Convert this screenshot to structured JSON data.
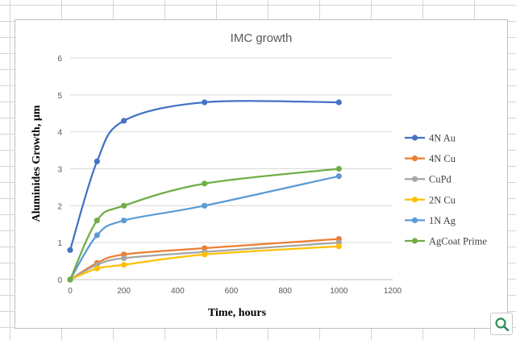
{
  "chart_data": {
    "type": "line",
    "title": "IMC growth",
    "xlabel": "Time, hours",
    "ylabel": "Aluminides Growth, µm",
    "xlim": [
      0,
      1200
    ],
    "ylim": [
      0,
      6
    ],
    "xticks": [
      0,
      200,
      400,
      600,
      800,
      1000,
      1200
    ],
    "yticks": [
      0,
      1,
      2,
      3,
      4,
      5,
      6
    ],
    "grid": "horizontal",
    "legend": "right",
    "series": [
      {
        "name": "4N Au",
        "color": "#4472c4",
        "x": [
          0,
          100,
          200,
          500,
          1000
        ],
        "y": [
          0.8,
          3.2,
          4.3,
          4.8,
          4.8
        ]
      },
      {
        "name": "4N Cu",
        "color": "#ed7d31",
        "x": [
          0,
          100,
          200,
          500,
          1000
        ],
        "y": [
          0,
          0.45,
          0.68,
          0.85,
          1.1
        ]
      },
      {
        "name": "CuPd",
        "color": "#a5a5a5",
        "x": [
          0,
          100,
          200,
          500,
          1000
        ],
        "y": [
          0,
          0.4,
          0.58,
          0.75,
          1.0
        ]
      },
      {
        "name": "2N Cu",
        "color": "#ffc000",
        "x": [
          0,
          100,
          200,
          500,
          1000
        ],
        "y": [
          0,
          0.3,
          0.4,
          0.68,
          0.9
        ]
      },
      {
        "name": "1N Ag",
        "color": "#5b9bd5",
        "x": [
          0,
          100,
          200,
          500,
          1000
        ],
        "y": [
          0,
          1.2,
          1.6,
          2.0,
          2.8
        ]
      },
      {
        "name": "AgCoat Prime",
        "color": "#70ad47",
        "x": [
          0,
          100,
          200,
          500,
          1000
        ],
        "y": [
          0,
          1.6,
          2.0,
          2.6,
          3.0
        ]
      }
    ]
  },
  "ui": {
    "zoom_icon": "magnifier-icon",
    "zoom_color": "#2e8b57"
  }
}
